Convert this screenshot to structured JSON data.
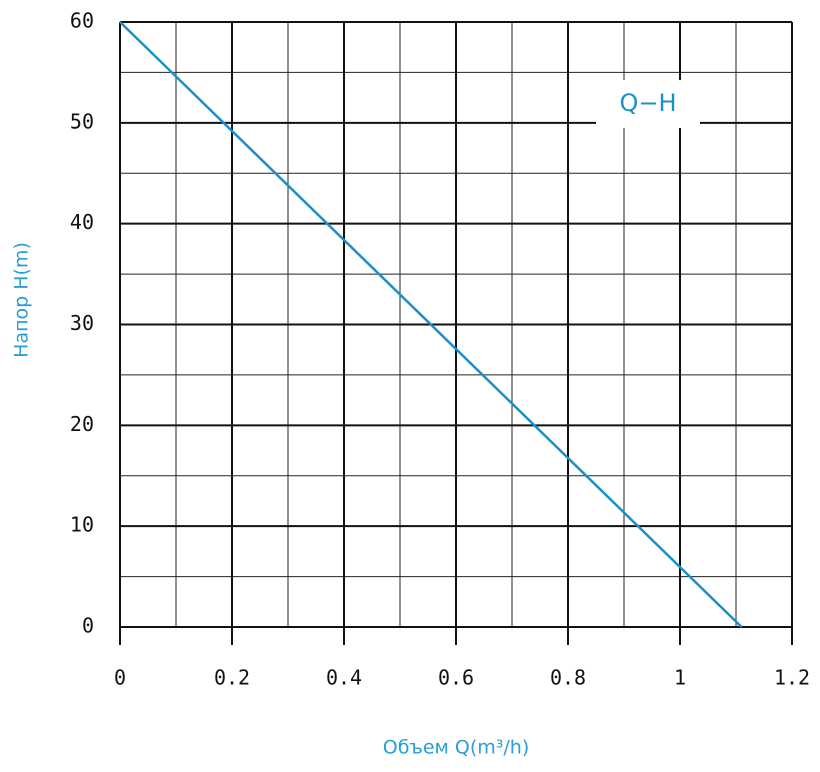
{
  "chart_data": {
    "type": "line",
    "label": "Q−H",
    "x_label": "Объем Q(m³/h)",
    "y_label": "Напор H(m)",
    "series": [
      {
        "name": "Q−H",
        "color": "#1a8fc9",
        "x": [
          0,
          1.11
        ],
        "values": [
          60,
          0
        ]
      }
    ],
    "xlim": [
      0,
      1.2
    ],
    "xticks": [
      0,
      0.2,
      0.4,
      0.6,
      0.8,
      1,
      1.2
    ],
    "ylim": [
      0,
      60
    ],
    "yticks": [
      0,
      10,
      20,
      30,
      40,
      50,
      60
    ],
    "grid": true
  }
}
